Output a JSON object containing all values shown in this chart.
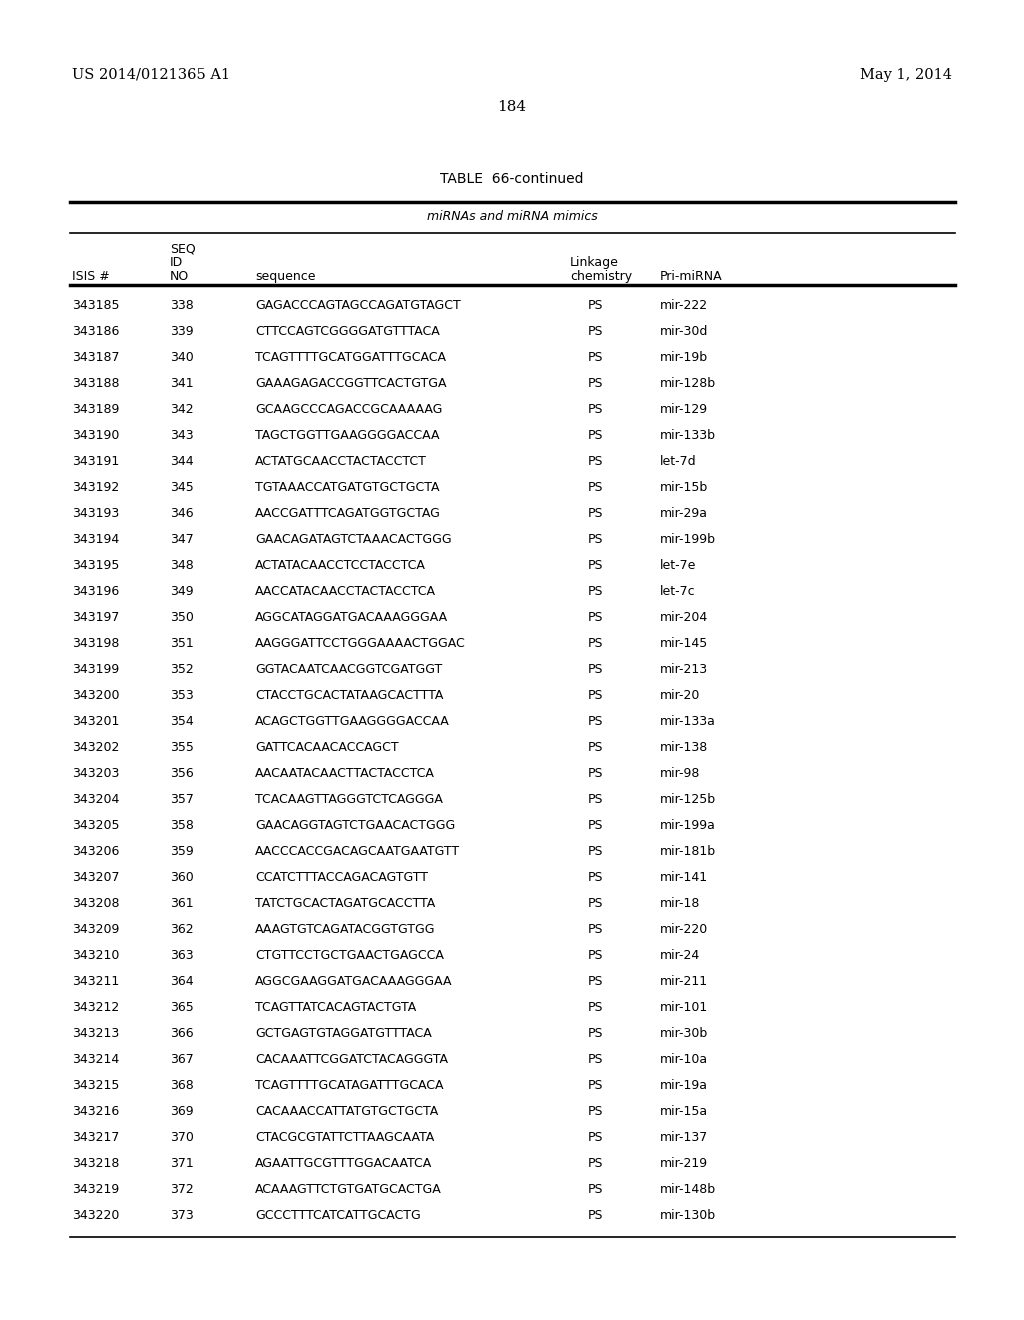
{
  "page_left": "US 2014/0121365 A1",
  "page_right": "May 1, 2014",
  "page_number": "184",
  "table_title": "TABLE  66-continued",
  "table_subtitle": "miRNAs and miRNA mimics",
  "rows": [
    [
      "343185",
      "338",
      "GAGACCCAGTAGCCAGATGTAGCT",
      "PS",
      "mir-222"
    ],
    [
      "343186",
      "339",
      "CTTCCAGTCGGGGATGTTTACA",
      "PS",
      "mir-30d"
    ],
    [
      "343187",
      "340",
      "TCAGTTTTGCATGGATTTGCACA",
      "PS",
      "mir-19b"
    ],
    [
      "343188",
      "341",
      "GAAAGAGACCGGTTCACTGTGA",
      "PS",
      "mir-128b"
    ],
    [
      "343189",
      "342",
      "GCAAGCCCAGACCGCAAAAAG",
      "PS",
      "mir-129"
    ],
    [
      "343190",
      "343",
      "TAGCTGGTTGAAGGGGACCAA",
      "PS",
      "mir-133b"
    ],
    [
      "343191",
      "344",
      "ACTATGCAACCTACTACCTCT",
      "PS",
      "let-7d"
    ],
    [
      "343192",
      "345",
      "TGTAAACCATGATGTGCTGCTA",
      "PS",
      "mir-15b"
    ],
    [
      "343193",
      "346",
      "AACCGATTTCAGATGGTGCTAG",
      "PS",
      "mir-29a"
    ],
    [
      "343194",
      "347",
      "GAACAGATAGTCTAAACACTGGG",
      "PS",
      "mir-199b"
    ],
    [
      "343195",
      "348",
      "ACTATACAACCTCCTACCTCA",
      "PS",
      "let-7e"
    ],
    [
      "343196",
      "349",
      "AACCATACAACCTACTACCTCA",
      "PS",
      "let-7c"
    ],
    [
      "343197",
      "350",
      "AGGCATAGGATGACAAAGGGAA",
      "PS",
      "mir-204"
    ],
    [
      "343198",
      "351",
      "AAGGGATTCCTGGGAAAACTGGAC",
      "PS",
      "mir-145"
    ],
    [
      "343199",
      "352",
      "GGTACAATCAACGGTCGATGGT",
      "PS",
      "mir-213"
    ],
    [
      "343200",
      "353",
      "CTACCTGCACTATAAGCACTTTA",
      "PS",
      "mir-20"
    ],
    [
      "343201",
      "354",
      "ACAGCTGGTTGAAGGGGACCAA",
      "PS",
      "mir-133a"
    ],
    [
      "343202",
      "355",
      "GATTCACAACACCAGCT",
      "PS",
      "mir-138"
    ],
    [
      "343203",
      "356",
      "AACAATACAACTTACTACCTCA",
      "PS",
      "mir-98"
    ],
    [
      "343204",
      "357",
      "TCACAAGTTAGGGTCTCAGGGA",
      "PS",
      "mir-125b"
    ],
    [
      "343205",
      "358",
      "GAACAGGTAGTCTGAACACTGGG",
      "PS",
      "mir-199a"
    ],
    [
      "343206",
      "359",
      "AACCCACCGACAGCAATGAATGTT",
      "PS",
      "mir-181b"
    ],
    [
      "343207",
      "360",
      "CCATCTTTACCAGACAGTGTT",
      "PS",
      "mir-141"
    ],
    [
      "343208",
      "361",
      "TATCTGCACTAGATGCACCTTA",
      "PS",
      "mir-18"
    ],
    [
      "343209",
      "362",
      "AAAGTGTCAGATACGGTGTGG",
      "PS",
      "mir-220"
    ],
    [
      "343210",
      "363",
      "CTGTTCCTGCTGAACTGAGCCA",
      "PS",
      "mir-24"
    ],
    [
      "343211",
      "364",
      "AGGCGAAGGATGACAAAGGGAA",
      "PS",
      "mir-211"
    ],
    [
      "343212",
      "365",
      "TCAGTTATCACAGTACTGTA",
      "PS",
      "mir-101"
    ],
    [
      "343213",
      "366",
      "GCTGAGTGTAGGATGTTTACA",
      "PS",
      "mir-30b"
    ],
    [
      "343214",
      "367",
      "CACAAATTCGGATCTACAGGGTA",
      "PS",
      "mir-10a"
    ],
    [
      "343215",
      "368",
      "TCAGTTTTGCATAGATTTGCACA",
      "PS",
      "mir-19a"
    ],
    [
      "343216",
      "369",
      "CACAAACCATTATGTGCTGCTA",
      "PS",
      "mir-15a"
    ],
    [
      "343217",
      "370",
      "CTACGCGTATTCTTAAGCAATA",
      "PS",
      "mir-137"
    ],
    [
      "343218",
      "371",
      "AGAATTGCGTTTGGACAATCA",
      "PS",
      "mir-219"
    ],
    [
      "343219",
      "372",
      "ACAAAGTTCTGTGATGCACTGA",
      "PS",
      "mir-148b"
    ],
    [
      "343220",
      "373",
      "GCCCTTTCATCATTGCACTG",
      "PS",
      "mir-130b"
    ]
  ],
  "background_color": "#ffffff",
  "text_color": "#000000"
}
